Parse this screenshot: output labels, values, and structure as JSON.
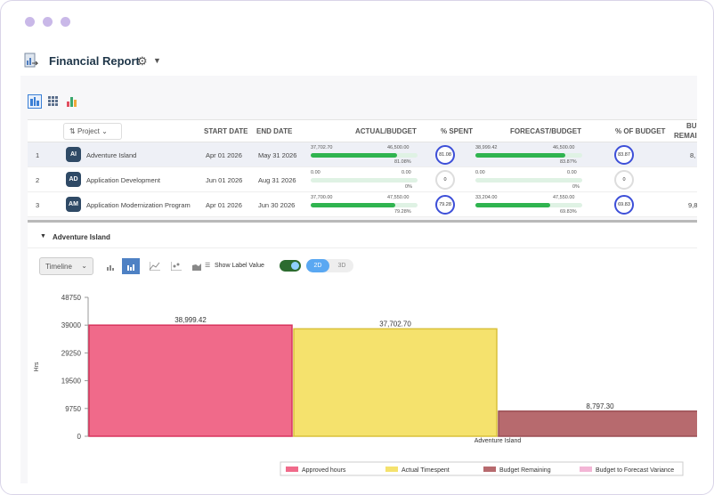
{
  "header": {
    "title": "Financial Report"
  },
  "table": {
    "columns": {
      "project": "Project",
      "start": "START DATE",
      "end": "END DATE",
      "actual_budget": "ACTUAL/BUDGET",
      "pct_spent": "% SPENT",
      "forecast_budget": "FORECAST/BUDGET",
      "pct_budget": "% OF BUDGET",
      "remaining_1": "BU",
      "remaining_2": "REMAI"
    },
    "rows": [
      {
        "num": "1",
        "initials": "AI",
        "name": "Adventure Island",
        "start": "Apr 01 2026",
        "end": "May 31 2026",
        "actual": "37,702.70",
        "budget": "46,500.00",
        "actual_pct": "81.08%",
        "actual_frac": 0.8108,
        "spent": "81.08",
        "forecast": "38,999.42",
        "fbudget": "46,500.00",
        "forecast_pct": "83.87%",
        "forecast_frac": 0.8387,
        "of_budget": "83.87",
        "remaining": "8,"
      },
      {
        "num": "2",
        "initials": "AD",
        "name": "Application Development",
        "start": "Jun 01 2026",
        "end": "Aug 31 2026",
        "actual": "0.00",
        "budget": "0.00",
        "actual_pct": "0%",
        "actual_frac": 0,
        "spent": "0",
        "forecast": "0.00",
        "fbudget": "0.00",
        "forecast_pct": "0%",
        "forecast_frac": 0,
        "of_budget": "0",
        "remaining": ""
      },
      {
        "num": "3",
        "initials": "AM",
        "name": "Application Modernization Program",
        "start": "Apr 01 2026",
        "end": "Jun 30 2026",
        "actual": "37,700.00",
        "budget": "47,550.00",
        "actual_pct": "79.28%",
        "actual_frac": 0.7928,
        "spent": "79.28",
        "forecast": "33,204.00",
        "fbudget": "47,550.00",
        "forecast_pct": "69.83%",
        "forecast_frac": 0.6983,
        "of_budget": "69.83",
        "remaining": "9,8"
      }
    ]
  },
  "section": {
    "title": "Adventure Island",
    "timeline_label": "Timeline",
    "show_label_value": "Show Label Value",
    "seg_2d": "2D",
    "seg_3d": "3D"
  },
  "colors": {
    "approved": "#f06a8a",
    "actual": "#f5e26d",
    "remaining": "#b76a6e",
    "variance": "#f3b6d6"
  },
  "chart_data": {
    "type": "bar",
    "categories": [
      "Adventure Island"
    ],
    "ylabel": "Hrs",
    "ylim": [
      0,
      48750
    ],
    "yticks": [
      "0",
      "9750",
      "19500",
      "29250",
      "39000",
      "48750"
    ],
    "series": [
      {
        "name": "Approved hours",
        "values": [
          38999.42
        ],
        "label": "38,999.42",
        "color": "#f06a8a",
        "stroke": "#d8345d"
      },
      {
        "name": "Actual Timespent",
        "values": [
          37702.7
        ],
        "label": "37,702.70",
        "color": "#f5e26d",
        "stroke": "#d9c13a"
      },
      {
        "name": "Budget Remaining",
        "values": [
          8797.3
        ],
        "label": "8,797.30",
        "color": "#b76a6e",
        "stroke": "#9a4d52"
      },
      {
        "name": "Budget to Forecast Variance",
        "values": [
          0
        ],
        "label": "",
        "color": "#f3b6d6",
        "stroke": "#d895b8"
      }
    ]
  }
}
